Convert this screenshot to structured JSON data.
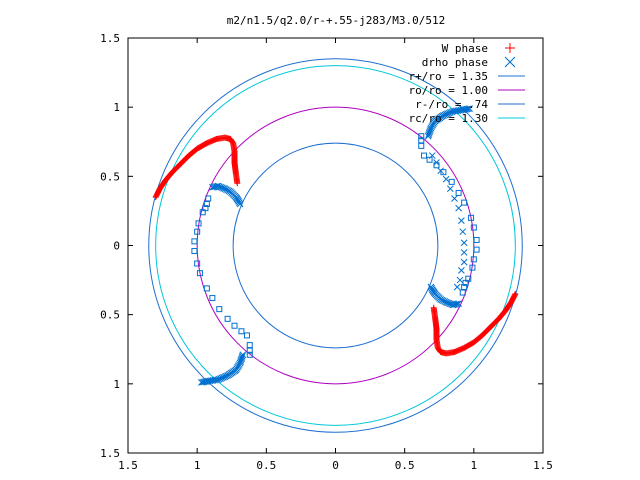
{
  "chart_data": {
    "type": "scatter",
    "title": "m2/n1.5/q2.0/r-+.55-j283/M3.0/512",
    "xlabel": "",
    "ylabel": "",
    "xlim": [
      -1.5,
      1.5
    ],
    "ylim": [
      -1.5,
      1.5
    ],
    "x_tick_labels": [
      "1.5",
      "1",
      "0.5",
      "0",
      "0.5",
      "1",
      "1.5"
    ],
    "y_tick_labels": [
      "1.5",
      "1",
      "0.5",
      "0",
      "0.5",
      "1",
      "1.5"
    ],
    "tick_values": [
      -1.5,
      -1,
      -0.5,
      0,
      0.5,
      1,
      1.5
    ],
    "grid": false,
    "legend_position": "top-right",
    "legend": [
      {
        "label": "W phase",
        "marker": "plus",
        "color": "#ff0000"
      },
      {
        "label": "drho phase",
        "marker": "x",
        "color": "#0070d0"
      },
      {
        "label": "r+/ro = 1.35",
        "marker": "line",
        "color": "#1f6fcf"
      },
      {
        "label": "ro/ro = 1.00",
        "marker": "line",
        "color": "#b000c0"
      },
      {
        "label": "r-/ro = .74",
        "marker": "line",
        "color": "#1f6fcf"
      },
      {
        "label": "rc/ro = 1.30",
        "marker": "line",
        "color": "#00c8d8"
      }
    ],
    "circles": [
      {
        "name": "r+/ro",
        "radius": 1.35,
        "color": "#1f6fcf"
      },
      {
        "name": "ro/ro",
        "radius": 1.0,
        "color": "#b000c0"
      },
      {
        "name": "r-/ro",
        "radius": 0.74,
        "color": "#1f6fcf"
      },
      {
        "name": "rc/ro",
        "radius": 1.3,
        "color": "#00c8d8"
      }
    ],
    "series": [
      {
        "name": "W phase",
        "color": "#ff0000",
        "arm": [
          [
            -1.3,
            0.35
          ],
          [
            -1.27,
            0.41
          ],
          [
            -1.23,
            0.47
          ],
          [
            -1.18,
            0.53
          ],
          [
            -1.12,
            0.59
          ],
          [
            -1.06,
            0.65
          ],
          [
            -1.0,
            0.7
          ],
          [
            -0.93,
            0.74
          ],
          [
            -0.86,
            0.77
          ],
          [
            -0.8,
            0.78
          ],
          [
            -0.76,
            0.77
          ],
          [
            -0.74,
            0.74
          ],
          [
            -0.73,
            0.68
          ],
          [
            -0.73,
            0.6
          ],
          [
            -0.72,
            0.52
          ],
          [
            -0.71,
            0.45
          ]
        ]
      },
      {
        "name": "drho phase",
        "color": "#0070d0",
        "arm_squares": [
          [
            -0.94,
            0.27
          ],
          [
            -0.93,
            0.3
          ],
          [
            -0.92,
            0.34
          ],
          [
            -0.96,
            0.24
          ],
          [
            -0.99,
            0.16
          ],
          [
            -1.0,
            0.1
          ],
          [
            -1.02,
            0.03
          ],
          [
            -1.02,
            -0.04
          ],
          [
            -1.0,
            -0.13
          ],
          [
            -0.98,
            -0.2
          ],
          [
            -0.93,
            -0.31
          ],
          [
            -0.89,
            -0.38
          ],
          [
            -0.84,
            -0.46
          ],
          [
            -0.78,
            -0.53
          ],
          [
            -0.73,
            -0.58
          ],
          [
            -0.68,
            -0.62
          ],
          [
            -0.64,
            -0.65
          ],
          [
            -0.62,
            -0.72
          ],
          [
            -0.62,
            -0.76
          ],
          [
            -0.62,
            -0.79
          ]
        ],
        "arm_x_upper": [
          [
            -0.89,
            0.42
          ],
          [
            -0.85,
            0.43
          ],
          [
            -0.8,
            0.41
          ],
          [
            -0.76,
            0.39
          ],
          [
            -0.72,
            0.35
          ],
          [
            -0.7,
            0.32
          ],
          [
            -0.69,
            0.3
          ]
        ],
        "arm_x_lower": [
          [
            -0.67,
            -0.79
          ],
          [
            -0.69,
            -0.85
          ],
          [
            -0.72,
            -0.9
          ],
          [
            -0.78,
            -0.94
          ],
          [
            -0.85,
            -0.97
          ],
          [
            -0.92,
            -0.98
          ],
          [
            -0.97,
            -0.99
          ]
        ],
        "arm_x_outer": [
          [
            0.7,
            0.65
          ],
          [
            0.73,
            0.6
          ],
          [
            0.76,
            0.54
          ],
          [
            0.8,
            0.48
          ],
          [
            0.83,
            0.41
          ],
          [
            0.86,
            0.34
          ],
          [
            0.89,
            0.27
          ],
          [
            0.91,
            0.18
          ],
          [
            0.92,
            0.1
          ],
          [
            0.93,
            0.02
          ],
          [
            0.93,
            -0.05
          ],
          [
            0.93,
            -0.12
          ],
          [
            0.91,
            -0.18
          ],
          [
            0.9,
            -0.25
          ],
          [
            0.88,
            -0.3
          ]
        ]
      }
    ]
  }
}
